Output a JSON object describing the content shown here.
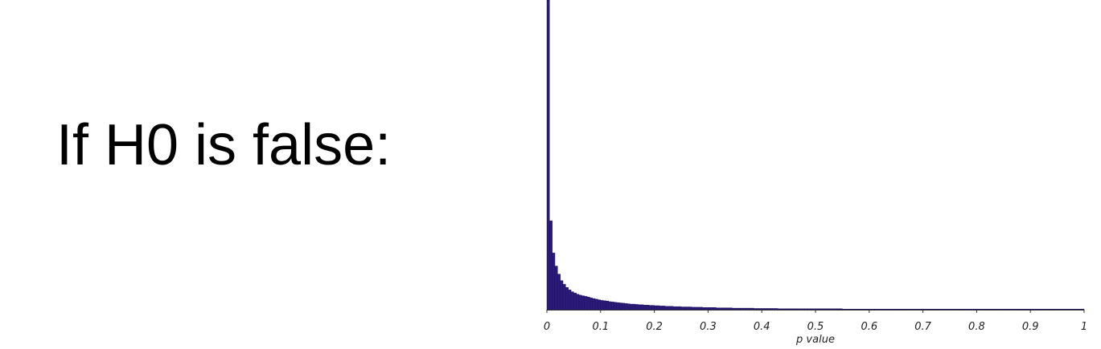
{
  "slide": {
    "heading": "If H0 is false:"
  },
  "chart_data": {
    "type": "bar",
    "title": "",
    "xlabel": "p value",
    "ylabel": "",
    "xlim": [
      0,
      1
    ],
    "ylim": [
      0,
      1
    ],
    "grid": false,
    "legend": "none",
    "bin_width": 0.005,
    "bar_color": "#2b1a7a",
    "bar_edge_color": "#1a0f55",
    "x_ticks": [
      "0",
      "0.1",
      "0.2",
      "0.3",
      "0.4",
      "0.5",
      "0.6",
      "0.7",
      "0.8",
      "0.9",
      "1"
    ],
    "x_tick_values": [
      0,
      0.1,
      0.2,
      0.3,
      0.4,
      0.5,
      0.6,
      0.7,
      0.8,
      0.9,
      1
    ],
    "values": [
      1.0,
      0.287,
      0.183,
      0.141,
      0.115,
      0.094,
      0.082,
      0.072,
      0.064,
      0.058,
      0.054,
      0.05,
      0.047,
      0.045,
      0.043,
      0.041,
      0.038,
      0.036,
      0.034,
      0.032,
      0.03,
      0.029,
      0.028,
      0.026,
      0.025,
      0.024,
      0.023,
      0.022,
      0.021,
      0.02,
      0.019,
      0.018,
      0.018,
      0.017,
      0.016,
      0.016,
      0.015,
      0.015,
      0.014,
      0.014,
      0.013,
      0.013,
      0.012,
      0.012,
      0.011,
      0.011,
      0.011,
      0.01,
      0.01,
      0.01,
      0.009,
      0.009,
      0.009,
      0.009,
      0.008,
      0.008,
      0.008,
      0.008,
      0.007,
      0.007,
      0.007,
      0.007,
      0.007,
      0.006,
      0.006,
      0.006,
      0.006,
      0.006,
      0.006,
      0.005,
      0.005,
      0.005,
      0.005,
      0.005,
      0.005,
      0.005,
      0.005,
      0.004,
      0.004,
      0.004,
      0.004,
      0.004,
      0.004,
      0.004,
      0.004,
      0.004,
      0.003,
      0.003,
      0.003,
      0.003,
      0.003,
      0.003,
      0.003,
      0.003,
      0.003,
      0.003,
      0.003,
      0.003,
      0.003,
      0.003,
      0.003,
      0.003,
      0.003,
      0.003,
      0.003,
      0.003,
      0.003,
      0.003,
      0.003,
      0.003,
      0.002,
      0.002,
      0.002,
      0.002,
      0.002,
      0.002,
      0.002,
      0.002,
      0.002,
      0.002,
      0.002,
      0.002,
      0.002,
      0.002,
      0.002,
      0.002,
      0.002,
      0.002,
      0.002,
      0.002,
      0.002,
      0.002,
      0.002,
      0.002,
      0.002,
      0.002,
      0.002,
      0.002,
      0.002,
      0.002,
      0.002,
      0.002,
      0.002,
      0.002,
      0.002,
      0.002,
      0.002,
      0.002,
      0.002,
      0.002,
      0.002,
      0.002,
      0.002,
      0.002,
      0.002,
      0.002,
      0.002,
      0.002,
      0.002,
      0.002,
      0.002,
      0.002,
      0.002,
      0.002,
      0.002,
      0.002,
      0.002,
      0.002,
      0.002,
      0.002,
      0.002,
      0.002,
      0.002,
      0.002,
      0.002,
      0.002,
      0.002,
      0.002,
      0.002,
      0.002,
      0.002,
      0.002,
      0.002,
      0.002,
      0.002,
      0.002,
      0.002,
      0.002,
      0.002,
      0.002,
      0.002,
      0.002,
      0.002,
      0.002,
      0.002,
      0.002,
      0.002,
      0.002,
      0.002,
      0.002
    ]
  }
}
